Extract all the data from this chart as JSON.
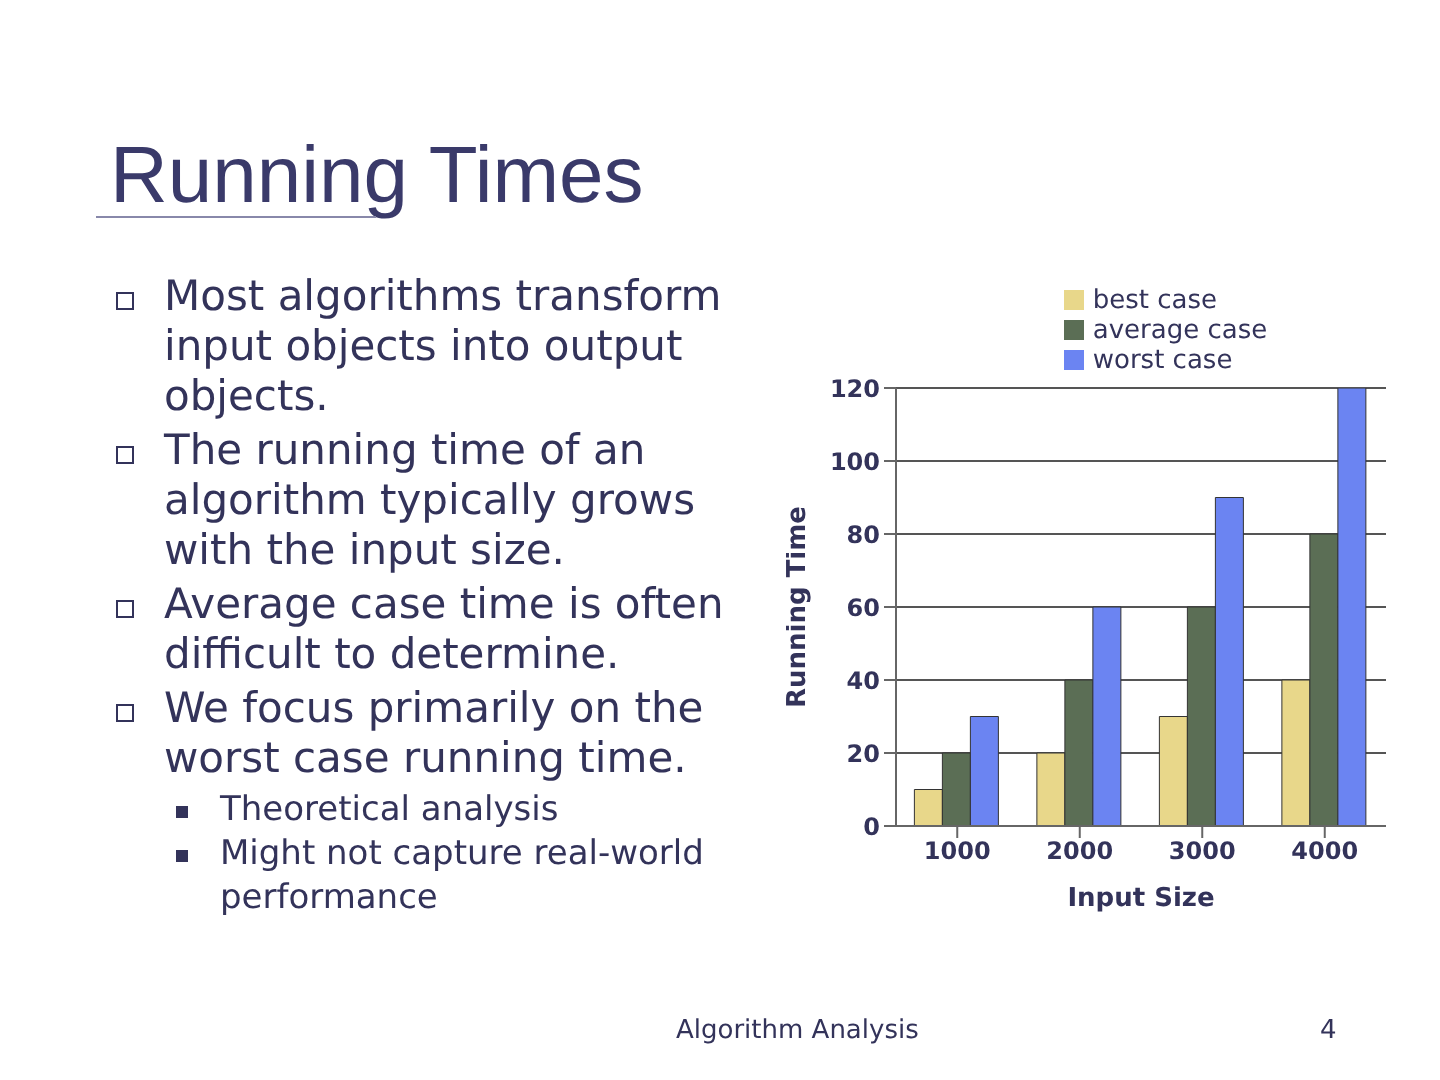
{
  "chart_data": {
    "type": "bar",
    "title": "Running Times",
    "annotations": [
      "Most algorithms transform input objects into output objects.",
      "The running time of an algorithm typically grows with the input size.",
      "Average case time is often difficult to determine.",
      "We focus primarily on the worst case running time.",
      "Theoretical analysis",
      "Might not capture real-world performance",
      "Algorithm Analysis",
      "4"
    ],
    "xlabel": "Input Size",
    "ylabel": "Running Time",
    "categories": [
      "1000",
      "2000",
      "3000",
      "4000"
    ],
    "series": [
      {
        "name": "best case",
        "color": "#e8d78a",
        "values": [
          10,
          20,
          30,
          40
        ]
      },
      {
        "name": "average case",
        "color": "#5b6e55",
        "values": [
          20,
          40,
          60,
          80
        ]
      },
      {
        "name": "worst case",
        "color": "#6b84f2",
        "values": [
          30,
          60,
          90,
          120
        ]
      }
    ],
    "ylim": [
      0,
      120
    ],
    "yticks": [
      0,
      20,
      40,
      60,
      80,
      100,
      120
    ],
    "grid": "y",
    "legend": "top"
  }
}
